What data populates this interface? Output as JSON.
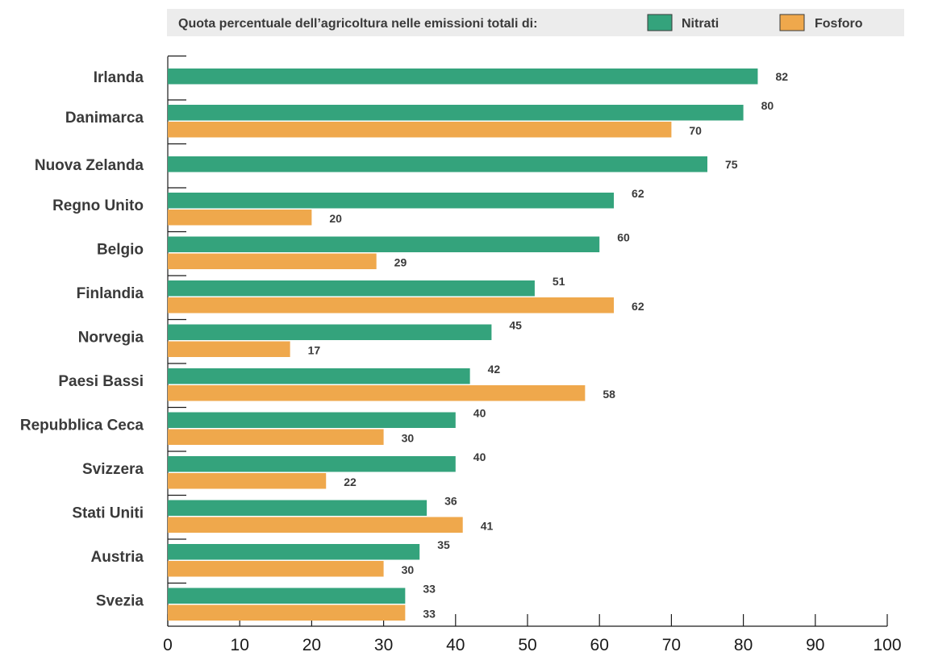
{
  "colors": {
    "nitrati": "#34a37c",
    "fosforo": "#efa84c",
    "legend_bg": "#ececec",
    "text": "#3a3a3a",
    "axis": "#1a1a1a"
  },
  "legend": {
    "title": "Quota percentuale dell’agricoltura nelle emissioni totali di:",
    "items": [
      {
        "label": "Nitrati",
        "color": "#34a37c"
      },
      {
        "label": "Fosforo",
        "color": "#efa84c"
      }
    ]
  },
  "chart_data": {
    "type": "bar",
    "orientation": "horizontal",
    "title": "",
    "xlabel": "",
    "ylabel": "",
    "xlim": [
      0,
      100
    ],
    "xticks": [
      0,
      10,
      20,
      30,
      40,
      50,
      60,
      70,
      80,
      90,
      100
    ],
    "grid": false,
    "legend_position": "top",
    "categories": [
      "Irlanda",
      "Danimarca",
      "Nuova Zelanda",
      "Regno Unito",
      "Belgio",
      "Finlandia",
      "Norvegia",
      "Paesi Bassi",
      "Repubblica Ceca",
      "Svizzera",
      "Stati Uniti",
      "Austria",
      "Svezia"
    ],
    "series": [
      {
        "name": "Nitrati",
        "color": "#34a37c",
        "values": [
          82,
          80,
          75,
          62,
          60,
          51,
          45,
          42,
          40,
          40,
          36,
          35,
          33
        ]
      },
      {
        "name": "Fosforo",
        "color": "#efa84c",
        "values": [
          null,
          70,
          null,
          20,
          29,
          62,
          17,
          58,
          30,
          22,
          41,
          30,
          33
        ]
      }
    ]
  }
}
